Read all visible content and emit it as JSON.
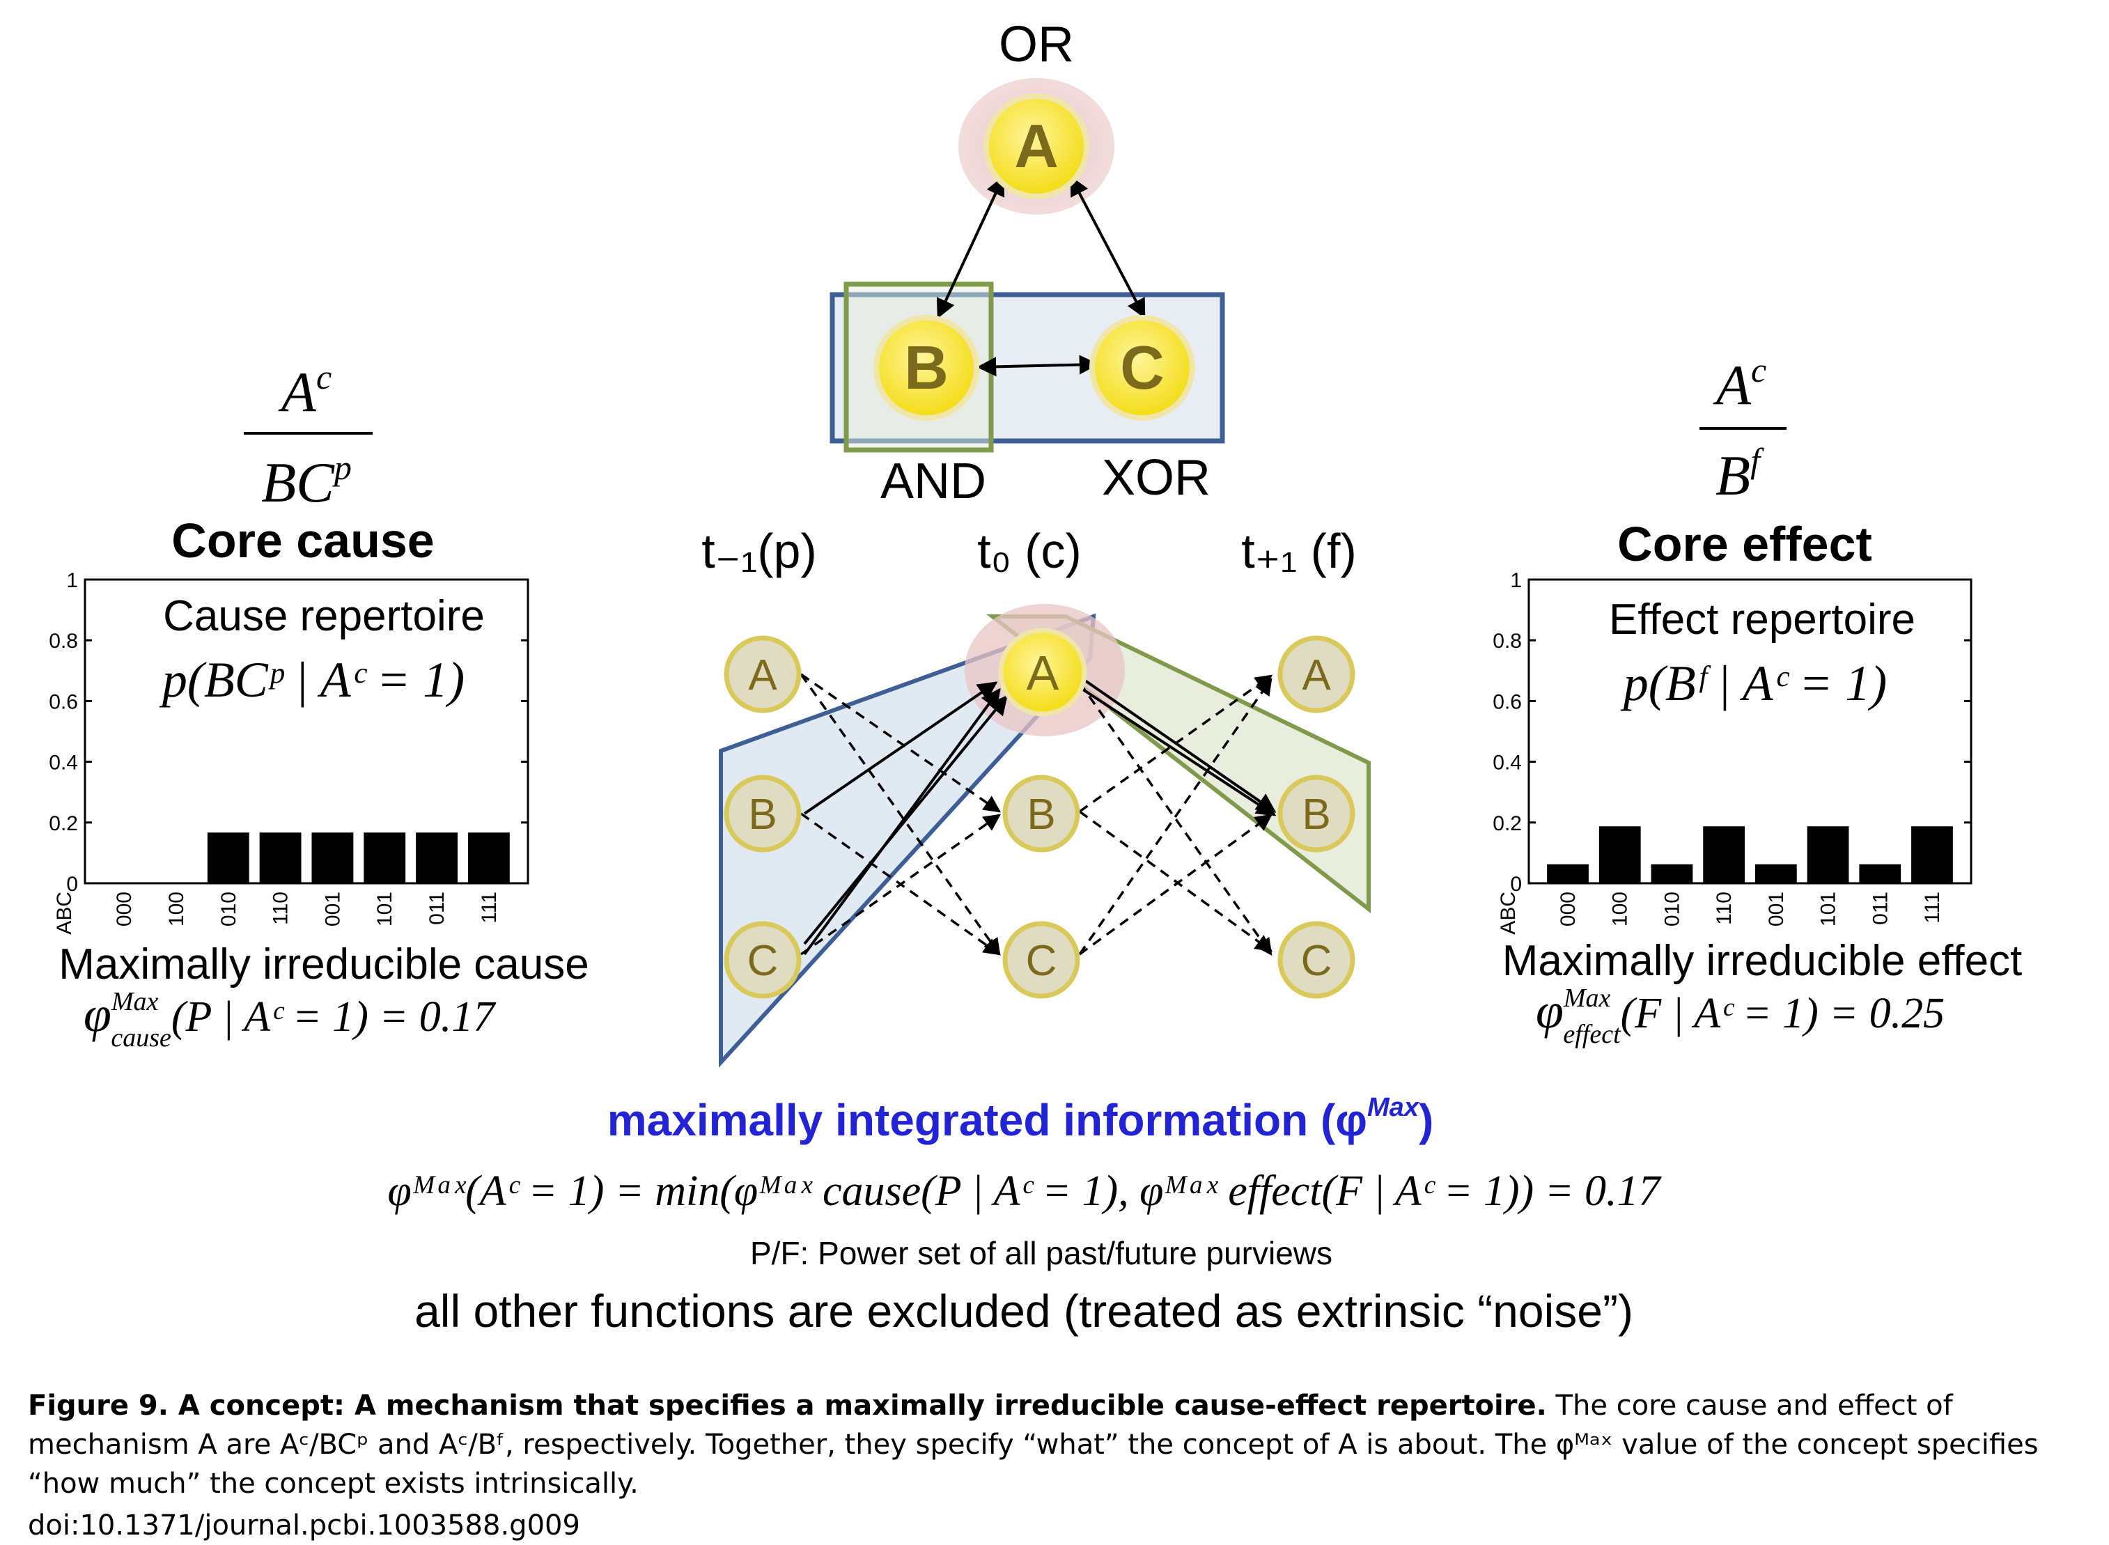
{
  "top_network": {
    "gate_a": "OR",
    "gate_b": "AND",
    "gate_c": "XOR",
    "nodes": {
      "a": "A",
      "b": "B",
      "c": "C"
    }
  },
  "core_cause": {
    "numerator": "A",
    "numerator_sup": "c",
    "denominator": "BC",
    "denominator_sup": "p",
    "title": "Core cause",
    "chart_title": "Cause repertoire",
    "chart_formula": "p(BCᵖ | Aᶜ = 1)",
    "footer_title": "Maximally irreducible cause",
    "footer_formula_phi": "φ",
    "footer_formula_sup": "Max",
    "footer_formula_sub": "cause",
    "footer_formula_rest": "(P | Aᶜ = 1) = 0.17"
  },
  "core_effect": {
    "numerator": "A",
    "numerator_sup": "c",
    "denominator": "B",
    "denominator_sup": "f",
    "title": "Core effect",
    "chart_title": "Effect repertoire",
    "chart_formula": "p(Bᶠ | Aᶜ = 1)",
    "footer_title": "Maximally irreducible effect",
    "footer_formula_phi": "φ",
    "footer_formula_sup": "Max",
    "footer_formula_sub": "effect",
    "footer_formula_rest": "(F | Aᶜ = 1) = 0.25"
  },
  "time_labels": {
    "past": "t₋₁(p)",
    "present": "t₀ (c)",
    "future": "t₊₁ (f)"
  },
  "bottom": {
    "headline": "maximally integrated information (φ",
    "headline_sup": "Max",
    "headline_close": ")",
    "formula": "φᴹᵃˣ(Aᶜ = 1) = min(φᴹᵃˣ cause(P | Aᶜ = 1), φᴹᵃˣ effect(F | Aᶜ = 1)) = 0.17",
    "powerset": "P/F: Power set of all past/future purviews",
    "excluded": "all other functions are excluded (treated as extrinsic “noise”)"
  },
  "caption": {
    "bold": "Figure 9. A concept: A mechanism that specifies a maximally irreducible cause-effect repertoire.",
    "text": " The core cause and effect of mechanism A are Aᶜ/BCᵖ and Aᶜ/Bᶠ, respectively. Together, they specify “what” the concept of A is about. The φᴹᵃˣ value of the concept specifies “how much” the concept exists intrinsically.",
    "doi": "doi:10.1371/journal.pcbi.1003588.g009"
  },
  "colors": {
    "node_fill": "#f6e21a",
    "node_stroke": "#b5a236",
    "node_text": "#7b6a1c",
    "past_node_fill": "#e0dcc2",
    "blue_box": "#3d5f96",
    "green_box": "#7f9a4a",
    "pink_glow": "#e8c4c4",
    "headline_blue": "#2323d6"
  },
  "chart_data": [
    {
      "type": "bar",
      "title": "Cause repertoire",
      "xlabel": "ABC",
      "categories": [
        "000",
        "100",
        "010",
        "110",
        "001",
        "101",
        "011",
        "111"
      ],
      "values": [
        0,
        0,
        0.167,
        0.167,
        0.167,
        0.167,
        0.167,
        0.167
      ],
      "ylim": [
        0,
        1
      ],
      "yticks": [
        "0",
        "0.2",
        "0.4",
        "0.6",
        "0.8",
        "1"
      ]
    },
    {
      "type": "bar",
      "title": "Effect repertoire",
      "xlabel": "ABC",
      "categories": [
        "000",
        "100",
        "010",
        "110",
        "001",
        "101",
        "011",
        "111"
      ],
      "values": [
        0.0625,
        0.1875,
        0.0625,
        0.1875,
        0.0625,
        0.1875,
        0.0625,
        0.1875
      ],
      "ylim": [
        0,
        1
      ],
      "yticks": [
        "0",
        "0.2",
        "0.4",
        "0.6",
        "0.8",
        "1"
      ]
    }
  ]
}
